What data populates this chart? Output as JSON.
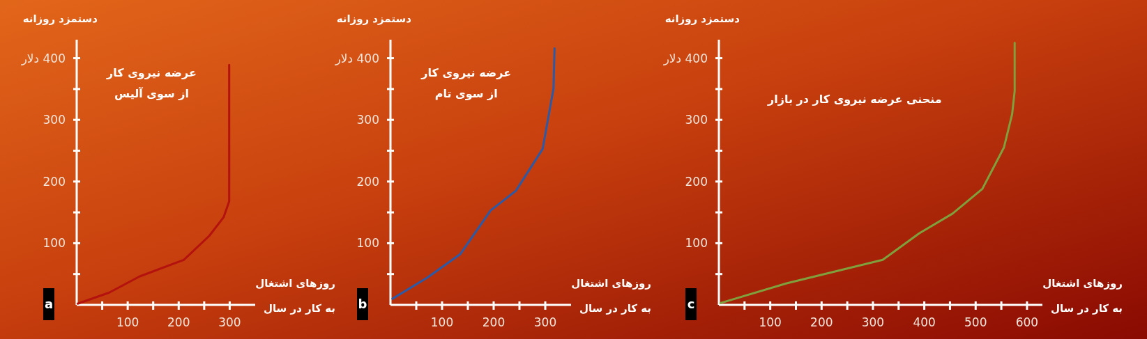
{
  "chart_data": [
    {
      "type": "line",
      "ylabel": "دستمزد روزانه",
      "xlabel": "روزهای اشتغال\nبه کار در سال",
      "annotations": [
        "عرضه نیروی کار\nاز سوی آلیس",
        "a"
      ],
      "x": [
        2,
        64,
        123,
        210,
        260,
        288,
        299,
        299
      ],
      "series": [
        {
          "color": "#b3120e",
          "values": [
            2,
            20,
            46,
            73,
            112,
            142,
            168,
            389
          ]
        }
      ],
      "xlim": [
        0,
        350
      ],
      "ylim": [
        0,
        430
      ],
      "xticks": [
        {
          "value": 50,
          "label": null
        },
        100,
        {
          "value": 150,
          "label": null
        },
        200,
        {
          "value": 250,
          "label": null
        },
        300
      ],
      "yticks": [
        {
          "value": 50,
          "label": null
        },
        100,
        {
          "value": 150,
          "label": null
        },
        200,
        {
          "value": 250,
          "label": null
        },
        300,
        {
          "value": 350,
          "label": null
        },
        {
          "value": 400,
          "label": "400 دلار"
        }
      ]
    },
    {
      "type": "line",
      "ylabel": "دستمزد روزانه",
      "xlabel": "روزهای اشتغال\nبه کار در سال",
      "annotations": [
        "عرضه نیروی کار\nاز سوی تام",
        "b"
      ],
      "x": [
        4,
        71,
        135,
        194,
        243,
        295,
        316,
        318
      ],
      "series": [
        {
          "color": "#2a5aa8",
          "values": [
            10,
            44,
            82,
            153,
            185,
            253,
            351,
            416
          ]
        }
      ],
      "xlim": [
        0,
        350
      ],
      "ylim": [
        0,
        430
      ],
      "xticks": [
        {
          "value": 50,
          "label": null
        },
        100,
        {
          "value": 150,
          "label": null
        },
        200,
        {
          "value": 250,
          "label": null
        },
        300
      ],
      "yticks": [
        {
          "value": 50,
          "label": null
        },
        100,
        {
          "value": 150,
          "label": null
        },
        200,
        {
          "value": 250,
          "label": null
        },
        300,
        {
          "value": 350,
          "label": null
        },
        {
          "value": 400,
          "label": "400 دلار"
        }
      ]
    },
    {
      "type": "line",
      "ylabel": "دستمزد روزانه",
      "xlabel": "روزهای اشتغال\nبه کار در سال",
      "annotations": [
        "منحنی عرضه نیروی کار در بازار",
        "c"
      ],
      "x": [
        3,
        132,
        319,
        390,
        455,
        513,
        555,
        571,
        576,
        576
      ],
      "series": [
        {
          "color": "#7fa03c",
          "values": [
            3,
            35,
            73,
            116,
            148,
            188,
            255,
            309,
            347,
            425
          ]
        }
      ],
      "xlim": [
        0,
        630
      ],
      "ylim": [
        0,
        430
      ],
      "xticks": [
        {
          "value": 50,
          "label": null
        },
        100,
        {
          "value": 150,
          "label": null
        },
        200,
        {
          "value": 250,
          "label": null
        },
        300,
        {
          "value": 350,
          "label": null
        },
        400,
        {
          "value": 450,
          "label": null
        },
        500,
        {
          "value": 550,
          "label": null
        },
        600
      ],
      "yticks": [
        {
          "value": 50,
          "label": null
        },
        100,
        {
          "value": 150,
          "label": null
        },
        200,
        {
          "value": 250,
          "label": null
        },
        300,
        {
          "value": 350,
          "label": null
        },
        {
          "value": 400,
          "label": "400 دلار"
        }
      ]
    }
  ]
}
